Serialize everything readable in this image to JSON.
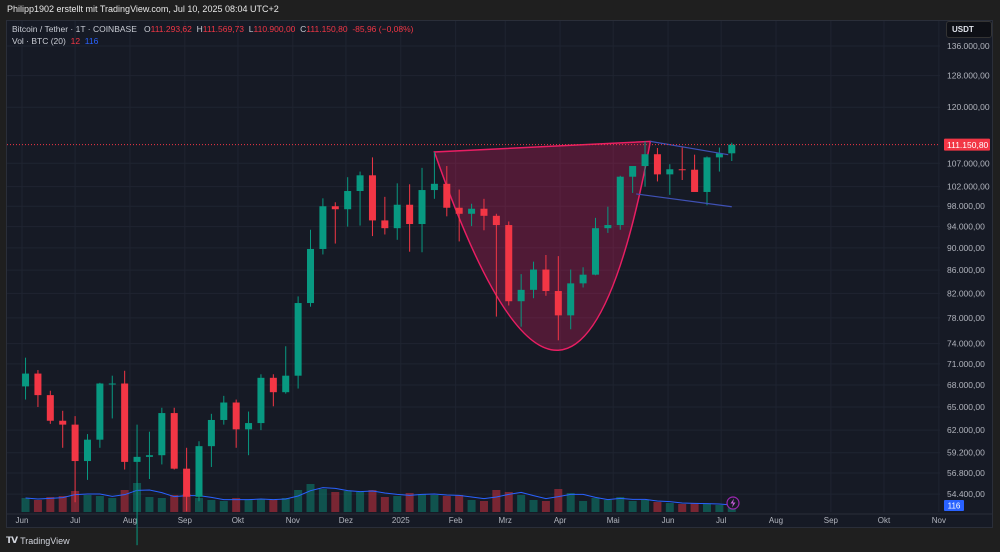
{
  "header": {
    "credit": "Philipp1902 erstellt mit TradingView.com, Jul 10, 2025 08:04 UTC+2"
  },
  "legend": {
    "symbol": "Bitcoin / Tether · 1T · COINBASE",
    "o_label": "O",
    "o": "111.293,62",
    "h_label": "H",
    "h": "111.569,73",
    "l_label": "L",
    "l": "110.900,00",
    "c_label": "C",
    "c": "111.150,80",
    "change": "-85,96 (−0,08%)",
    "vol_label": "Vol · BTC (20)",
    "vol": "12",
    "vol_ma": "116"
  },
  "footer": {
    "brand": "TradingView",
    "logo": "TV"
  },
  "colors": {
    "up": "#089981",
    "down": "#f23645",
    "cup": "#e91e63",
    "channel": "#3f51b5",
    "vol_ma": "#2962ff",
    "price_label": "#f23645",
    "vol_label": "#2962ff"
  },
  "chart_data": {
    "type": "candlestick",
    "unit": "USDT",
    "y_scale": "log",
    "ylim": [
      54400,
      136000
    ],
    "grid": true,
    "y_ticks": [
      "136.000,00",
      "128.000,00",
      "120.000,00",
      "107.000,00",
      "102.000,00",
      "98.000,00",
      "94.000,00",
      "90.000,00",
      "86.000,00",
      "82.000,00",
      "78.000,00",
      "74.000,00",
      "71.000,00",
      "68.000,00",
      "65.000,00",
      "62.000,00",
      "59.200,00",
      "56.800,00",
      "54.400,00"
    ],
    "x_ticks": [
      [
        "Jun",
        "2024-06-01"
      ],
      [
        "Jul",
        "2024-07-01"
      ],
      [
        "Aug",
        "2024-08-01"
      ],
      [
        "Sep",
        "2024-09-01"
      ],
      [
        "Okt",
        "2024-10-01"
      ],
      [
        "Nov",
        "2024-11-01"
      ],
      [
        "Dez",
        "2024-12-01"
      ],
      [
        "2025",
        "2025-01-01"
      ],
      [
        "Feb",
        "2025-02-01"
      ],
      [
        "Mrz",
        "2025-03-01"
      ],
      [
        "Apr",
        "2025-04-01"
      ],
      [
        "Mai",
        "2025-05-01"
      ],
      [
        "Jun",
        "2025-06-01"
      ],
      [
        "Jul",
        "2025-07-01"
      ],
      [
        "Aug",
        "2025-08-01"
      ],
      [
        "Sep",
        "2025-09-01"
      ],
      [
        "Okt",
        "2025-10-01"
      ],
      [
        "Nov",
        "2025-11-01"
      ]
    ],
    "last_price": 111150.8,
    "last_price_label": "111.150,80",
    "last_volume_label": "116",
    "candles": [
      [
        "2024-06-03",
        67800,
        71900,
        66000,
        69600
      ],
      [
        "2024-06-10",
        69600,
        70100,
        65000,
        66600
      ],
      [
        "2024-06-17",
        66600,
        67200,
        62800,
        63200
      ],
      [
        "2024-06-24",
        63200,
        64500,
        59800,
        62700
      ],
      [
        "2024-07-01",
        62700,
        63800,
        53500,
        58200
      ],
      [
        "2024-07-08",
        58200,
        61500,
        56000,
        60800
      ],
      [
        "2024-07-15",
        60800,
        68300,
        59800,
        68200
      ],
      [
        "2024-07-22",
        68200,
        69300,
        63500,
        68200
      ],
      [
        "2024-07-29",
        68200,
        70000,
        57200,
        58100
      ],
      [
        "2024-08-05",
        58100,
        62700,
        49000,
        58700
      ],
      [
        "2024-08-12",
        58700,
        61800,
        56100,
        58900
      ],
      [
        "2024-08-19",
        58900,
        64900,
        57800,
        64200
      ],
      [
        "2024-08-26",
        64200,
        64900,
        57200,
        57300
      ],
      [
        "2024-09-02",
        57300,
        59800,
        52500,
        54100
      ],
      [
        "2024-09-09",
        54100,
        60600,
        53600,
        60000
      ],
      [
        "2024-09-16",
        60000,
        64100,
        57500,
        63300
      ],
      [
        "2024-09-23",
        63300,
        66500,
        62700,
        65600
      ],
      [
        "2024-09-30",
        65600,
        66000,
        59800,
        62100
      ],
      [
        "2024-10-07",
        62100,
        64400,
        58900,
        62900
      ],
      [
        "2024-10-14",
        62900,
        69500,
        62000,
        69000
      ],
      [
        "2024-10-21",
        69000,
        69500,
        65100,
        67000
      ],
      [
        "2024-10-28",
        67000,
        73600,
        66800,
        69300
      ],
      [
        "2024-11-04",
        69300,
        81500,
        67500,
        80400
      ],
      [
        "2024-11-11",
        80400,
        93400,
        79800,
        89800
      ],
      [
        "2024-11-18",
        89800,
        99600,
        88800,
        98000
      ],
      [
        "2024-11-25",
        98000,
        98800,
        90800,
        97400
      ],
      [
        "2024-12-02",
        97400,
        104000,
        94000,
        101100
      ],
      [
        "2024-12-09",
        101100,
        105200,
        94200,
        104400
      ],
      [
        "2024-12-16",
        104400,
        108300,
        92200,
        95200
      ],
      [
        "2024-12-23",
        95200,
        99900,
        92500,
        93700
      ],
      [
        "2024-12-30",
        93700,
        102700,
        91500,
        98300
      ],
      [
        "2025-01-06",
        98300,
        102500,
        89300,
        94500
      ],
      [
        "2025-01-13",
        94500,
        106000,
        89200,
        101300
      ],
      [
        "2025-01-20",
        101300,
        109500,
        99500,
        102600
      ],
      [
        "2025-01-27",
        102600,
        106400,
        96000,
        97700
      ],
      [
        "2025-02-03",
        97700,
        101400,
        91200,
        96500
      ],
      [
        "2025-02-10",
        96500,
        98500,
        94100,
        97500
      ],
      [
        "2025-02-17",
        97500,
        99500,
        93300,
        96100
      ],
      [
        "2025-02-24",
        96100,
        96500,
        78200,
        94300
      ],
      [
        "2025-03-03",
        94300,
        95000,
        80000,
        80700
      ],
      [
        "2025-03-10",
        80700,
        85300,
        76600,
        82600
      ],
      [
        "2025-03-17",
        82600,
        87500,
        81200,
        86100
      ],
      [
        "2025-03-24",
        86100,
        88700,
        81600,
        82400
      ],
      [
        "2025-03-31",
        82400,
        88500,
        74500,
        78400
      ],
      [
        "2025-04-07",
        78400,
        86100,
        76200,
        83700
      ],
      [
        "2025-04-14",
        83700,
        86500,
        83000,
        85200
      ],
      [
        "2025-04-21",
        85200,
        95700,
        85100,
        93700
      ],
      [
        "2025-04-28",
        93700,
        97900,
        92800,
        94300
      ],
      [
        "2025-05-05",
        94300,
        104300,
        93400,
        104100
      ],
      [
        "2025-05-12",
        104100,
        105800,
        100700,
        106400
      ],
      [
        "2025-05-19",
        106400,
        111900,
        102000,
        109000
      ],
      [
        "2025-05-26",
        109000,
        110400,
        103100,
        104600
      ],
      [
        "2025-06-02",
        104600,
        106800,
        100300,
        105700
      ],
      [
        "2025-06-09",
        105700,
        110500,
        103400,
        105600
      ],
      [
        "2025-06-16",
        105600,
        108900,
        101000,
        100900
      ],
      [
        "2025-06-23",
        100900,
        108500,
        98200,
        108300
      ],
      [
        "2025-06-30",
        108300,
        110500,
        105200,
        109200
      ],
      [
        "2025-07-07",
        109200,
        111600,
        107500,
        111150
      ]
    ],
    "volume": [
      140,
      120,
      150,
      160,
      210,
      170,
      160,
      140,
      220,
      290,
      150,
      140,
      170,
      180,
      140,
      120,
      110,
      140,
      120,
      130,
      120,
      140,
      220,
      280,
      230,
      200,
      210,
      200,
      220,
      150,
      160,
      190,
      180,
      170,
      160,
      170,
      120,
      110,
      220,
      200,
      170,
      120,
      110,
      230,
      190,
      110,
      140,
      120,
      150,
      110,
      120,
      100,
      90,
      80,
      90,
      80,
      70,
      60
    ],
    "annotations": {
      "cup": {
        "left": [
          "2025-01-20",
          109500
        ],
        "bottom": [
          "2025-03-31",
          73000
        ],
        "right": [
          "2025-05-22",
          111900
        ]
      },
      "channel_upper": [
        [
          "2025-05-22",
          111900
        ],
        [
          "2025-07-05",
          108900
        ]
      ],
      "channel_lower": [
        [
          "2025-05-14",
          100500
        ],
        [
          "2025-07-07",
          97900
        ]
      ]
    }
  }
}
